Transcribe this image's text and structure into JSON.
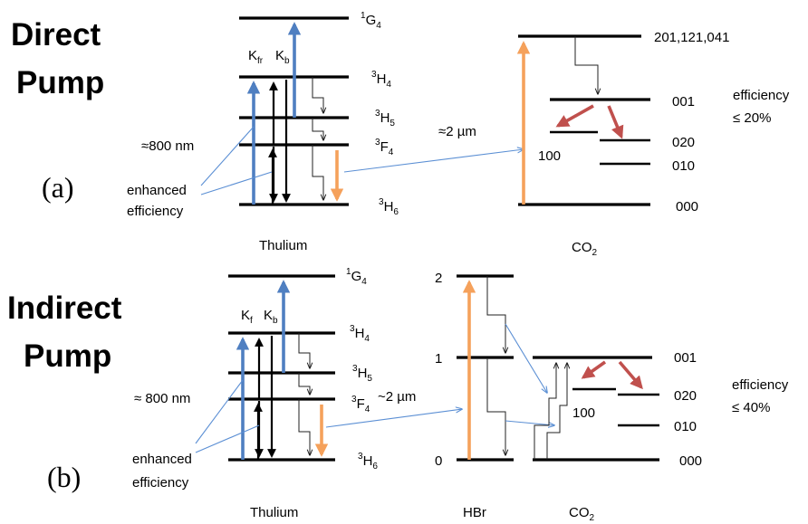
{
  "panel_a": {
    "heading_line1": "Direct",
    "heading_line2": "Pump",
    "tag": "(a)",
    "thulium": {
      "label": "Thulium",
      "states": [
        {
          "sup": "1",
          "main": "G",
          "sub": "4"
        },
        {
          "sup": "3",
          "main": "H",
          "sub": "4"
        },
        {
          "sup": "3",
          "main": "H",
          "sub": "5"
        },
        {
          "sup": "3",
          "main": "F",
          "sub": "4"
        },
        {
          "sup": "3",
          "main": "H",
          "sub": "6"
        }
      ],
      "rate_kf": "K",
      "rate_kf_sub": "fr",
      "rate_kb": "K",
      "rate_kb_sub": "b",
      "pump_label": "≈800 nm",
      "enhanced_line1": "enhanced",
      "enhanced_line2": "efficiency"
    },
    "transfer_label": "≈2 µm",
    "co2": {
      "label_main": "CO",
      "label_sub": "2",
      "levels": [
        "201,121,041",
        "001",
        "020",
        "010",
        "000"
      ],
      "level_100": "100",
      "efficiency_line1": "efficiency",
      "efficiency_line2": "≤ 20%"
    }
  },
  "panel_b": {
    "heading_line1": "Indirect",
    "heading_line2": "Pump",
    "tag": "(b)",
    "thulium": {
      "label": "Thulium",
      "states": [
        {
          "sup": "1",
          "main": "G",
          "sub": "4"
        },
        {
          "sup": "3",
          "main": "H",
          "sub": "4"
        },
        {
          "sup": "3",
          "main": "H",
          "sub": "5"
        },
        {
          "sup": "3",
          "main": "F",
          "sub": "4"
        },
        {
          "sup": "3",
          "main": "H",
          "sub": "6"
        }
      ],
      "rate_kf": "K",
      "rate_kf_sub": "f",
      "rate_kb": "K",
      "rate_kb_sub": "b",
      "pump_label": "≈ 800 nm",
      "enhanced_line1": "enhanced",
      "enhanced_line2": "efficiency"
    },
    "transfer_label": "~2 µm",
    "hbr": {
      "label": "HBr",
      "levels": [
        "2",
        "1",
        "0"
      ]
    },
    "co2": {
      "label_main": "CO",
      "label_sub": "2",
      "levels": [
        "001",
        "020",
        "010",
        "000"
      ],
      "level_100": "100",
      "efficiency_line1": "efficiency",
      "efficiency_line2": "≤ 40%"
    }
  },
  "colors": {
    "pump_arrow": "#4f7fc1",
    "transfer_line": "#5b8fd4",
    "emission_arrow": "#f5a15b",
    "relaxation_arrow": "#c0504d"
  }
}
